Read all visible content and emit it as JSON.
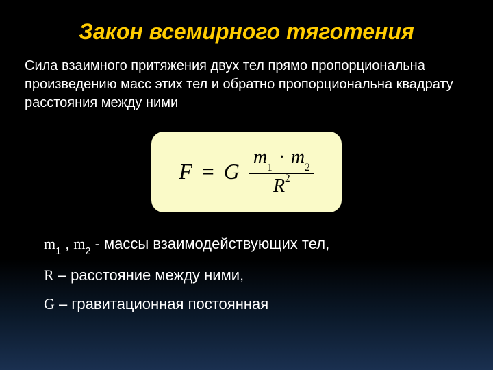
{
  "title": "Закон всемирного тяготения",
  "description": "Сила взаимного притяжения двух тел прямо пропорциональна произведению масс этих тел и обратно пропорциональна квадрату расстояния между ними",
  "formula": {
    "F": "F",
    "equals": "=",
    "G": "G",
    "m1": "m",
    "m1_sub": "1",
    "dot": "·",
    "m2": "m",
    "m2_sub": "2",
    "R": "R",
    "R_sup": "2",
    "box_bg": "#fafac8",
    "text_color": "#000000"
  },
  "definitions": {
    "masses": {
      "m1": "m",
      "m1_sub": "1",
      "sep": " , ",
      "m2": "m",
      "m2_sub": "2",
      "text": "  - массы взаимодействующих тел,"
    },
    "distance": {
      "sym": "R",
      "text": " – расстояние между ними,"
    },
    "constant": {
      "sym": "G",
      "text": " – гравитационная постоянная"
    }
  },
  "colors": {
    "title": "#ffcc00",
    "body_text": "#ffffff",
    "bg_top": "#000000",
    "bg_bottom": "#1a3050"
  },
  "typography": {
    "title_fontsize": 32,
    "description_fontsize": 20,
    "formula_fontsize": 32,
    "definition_fontsize": 22
  }
}
